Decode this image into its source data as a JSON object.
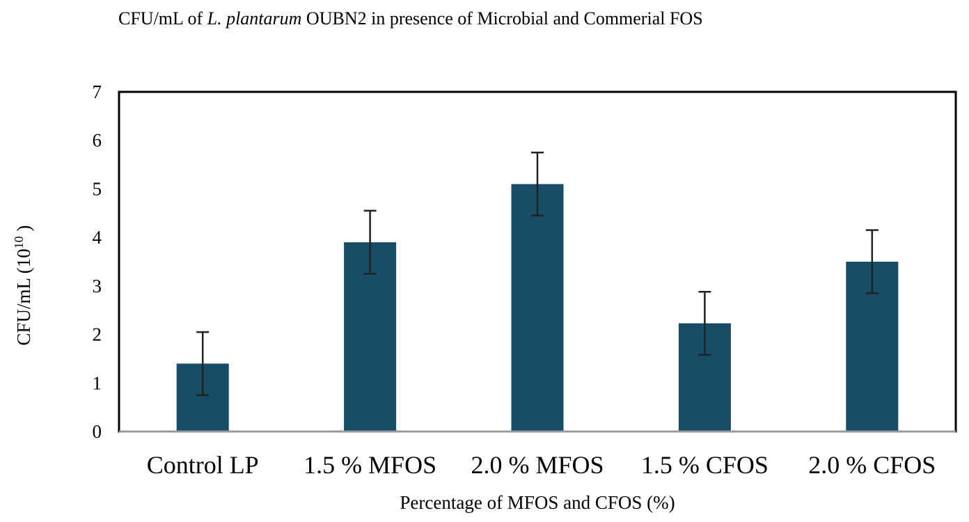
{
  "chart_data": {
    "type": "bar",
    "title_prefix": "CFU/mL of ",
    "title_italic": "L. plantarum",
    "title_suffix": " OUBN2 in presence of Microbial and Commerial FOS",
    "xlabel": "Percentage of MFOS and CFOS (%)",
    "ylabel_main": "CFU/mL (10",
    "ylabel_sup": "10",
    "ylabel_end": " )",
    "categories": [
      "Control LP",
      "1.5 % MFOS",
      "2.0 % MFOS",
      "1.5 % CFOS",
      "2.0 % CFOS"
    ],
    "values": [
      1.4,
      3.9,
      5.1,
      2.23,
      3.5
    ],
    "error": [
      0.65,
      0.65,
      0.65,
      0.65,
      0.65
    ],
    "ylim": [
      0,
      7
    ],
    "yticks": [
      0,
      1,
      2,
      3,
      4,
      5,
      6,
      7
    ],
    "grid": false,
    "legend": "none",
    "bar_color": "#174d66",
    "error_color": "#222222"
  }
}
